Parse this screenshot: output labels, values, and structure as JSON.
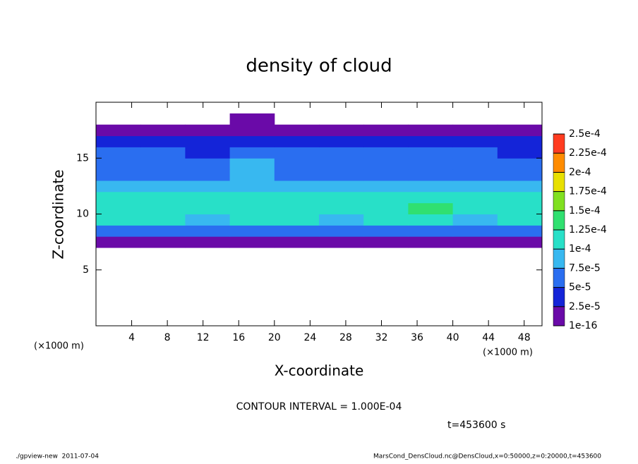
{
  "chart_data": {
    "type": "heatmap",
    "title": "density of cloud",
    "x_label": "X-coordinate",
    "y_label": "Z-coordinate",
    "x_unit": "(×1000 m)",
    "y_unit": "(×1000 m)",
    "x": [
      2.5,
      7.5,
      12.5,
      17.5,
      22.5,
      27.5,
      32.5,
      37.5,
      42.5,
      47.5
    ],
    "z": [
      7.5,
      8.5,
      9.5,
      10.5,
      11.5,
      12.5,
      13.5,
      14.5,
      15.5,
      16.5,
      17.5,
      18.5
    ],
    "values": [
      [
        2e-05,
        2e-05,
        2e-05,
        2e-05,
        2e-05,
        2e-05,
        2e-05,
        2e-05,
        2e-05,
        2e-05
      ],
      [
        6e-05,
        6e-05,
        6e-05,
        6e-05,
        6e-05,
        6e-05,
        6e-05,
        6e-05,
        6e-05,
        6e-05
      ],
      [
        0.0001,
        0.0001,
        9e-05,
        0.0001,
        0.0001,
        9e-05,
        0.0001,
        0.0001,
        9e-05,
        0.0001
      ],
      [
        0.00012,
        0.00011,
        0.00011,
        0.00012,
        0.00012,
        0.00011,
        0.00011,
        0.00013,
        0.00012,
        0.00011
      ],
      [
        0.00011,
        0.00011,
        0.0001,
        0.00011,
        0.00011,
        0.0001,
        0.0001,
        0.00011,
        0.00011,
        0.00011
      ],
      [
        9e-05,
        8e-05,
        8e-05,
        9e-05,
        8e-05,
        8e-05,
        8e-05,
        8e-05,
        9e-05,
        8e-05
      ],
      [
        6e-05,
        6e-05,
        6e-05,
        8e-05,
        7e-05,
        6e-05,
        6e-05,
        7e-05,
        6e-05,
        6e-05
      ],
      [
        5e-05,
        5e-05,
        5e-05,
        8e-05,
        7e-05,
        5e-05,
        5e-05,
        6e-05,
        5e-05,
        5e-05
      ],
      [
        5e-05,
        5e-05,
        4e-05,
        6e-05,
        5e-05,
        5e-05,
        5e-05,
        5e-05,
        5e-05,
        4e-05
      ],
      [
        3e-05,
        3e-05,
        3e-05,
        3e-05,
        3e-05,
        3e-05,
        3e-05,
        3e-05,
        3e-05,
        3e-05
      ],
      [
        1e-05,
        1e-05,
        1e-05,
        1e-05,
        1e-05,
        1e-05,
        1e-05,
        1e-05,
        1e-05,
        1e-05
      ],
      [
        null,
        null,
        null,
        1e-05,
        null,
        null,
        null,
        null,
        null,
        null
      ]
    ],
    "xlim": [
      0,
      50
    ],
    "xticks": [
      4,
      8,
      12,
      16,
      20,
      24,
      28,
      32,
      36,
      40,
      44,
      48
    ],
    "ylim": [
      0,
      20
    ],
    "yticks": [
      5,
      10,
      15
    ],
    "levels": [
      {
        "value": 1e-16,
        "label": "1e-16"
      },
      {
        "value": 2.5e-05,
        "label": "2.5e-5"
      },
      {
        "value": 5e-05,
        "label": "5e-5"
      },
      {
        "value": 7.5e-05,
        "label": "7.5e-5"
      },
      {
        "value": 0.0001,
        "label": "1e-4"
      },
      {
        "value": 0.000125,
        "label": "1.25e-4"
      },
      {
        "value": 0.00015,
        "label": "1.5e-4"
      },
      {
        "value": 0.000175,
        "label": "1.75e-4"
      },
      {
        "value": 0.0002,
        "label": "2e-4"
      },
      {
        "value": 0.000225,
        "label": "2.25e-4"
      },
      {
        "value": 0.00025,
        "label": "2.5e-4"
      }
    ],
    "colors": [
      "#6a0aa8",
      "#1424d8",
      "#2a6ef0",
      "#38b8f0",
      "#28e0c8",
      "#30e070",
      "#80e020",
      "#e8e000",
      "#ff8c00",
      "#ff3c20"
    ],
    "contour_note": "CONTOUR INTERVAL = 1.000E-04",
    "time_label": "t=453600 s",
    "footer_left": "./gpview-new  2011-07-04",
    "footer_right": "MarsCond_DensCloud.nc@DensCloud,x=0:50000,z=0:20000,t=453600"
  }
}
